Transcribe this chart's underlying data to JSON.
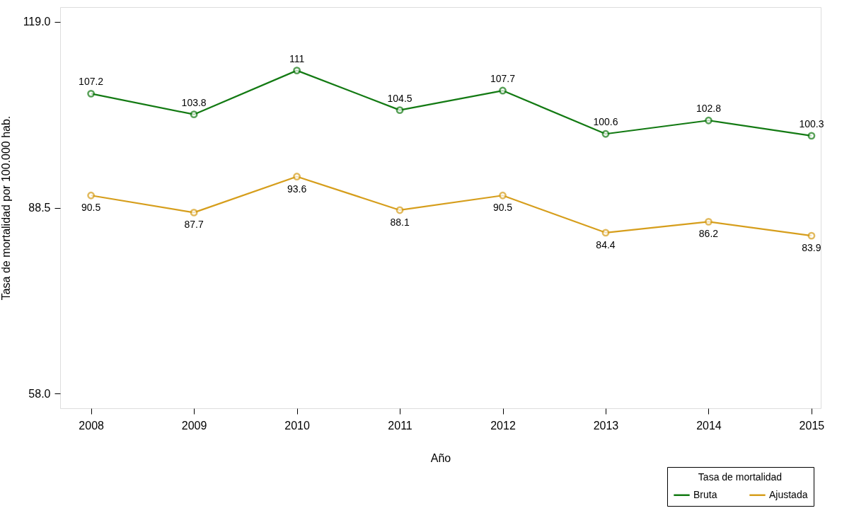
{
  "chart_data": {
    "type": "line",
    "xlabel": "Año",
    "ylabel": "Tasa de mortalidad por 100.000 hab.",
    "legend_title": "Tasa de mortalidad",
    "x": [
      2008,
      2009,
      2010,
      2011,
      2012,
      2013,
      2014,
      2015
    ],
    "series": [
      {
        "name": "Bruta",
        "color": "#137a13",
        "values": [
          107.2,
          103.8,
          111,
          104.5,
          107.7,
          100.6,
          102.8,
          100.3
        ]
      },
      {
        "name": "Ajustada",
        "color": "#d69e1c",
        "values": [
          90.5,
          87.7,
          93.6,
          88.1,
          90.5,
          84.4,
          86.2,
          83.9
        ]
      }
    ],
    "xlim": [
      2007.7,
      2015.09
    ],
    "xticks": [
      2008,
      2009,
      2010,
      2011,
      2012,
      2013,
      2014,
      2015
    ],
    "ylim": [
      55.6,
      121.4
    ],
    "yticks": [
      {
        "value": 58,
        "label": "58.0"
      },
      {
        "value": 88.5,
        "label": "88.5"
      },
      {
        "value": 119,
        "label": "119.0"
      }
    ],
    "grid": false,
    "legend": "bottom right",
    "marker": "circle",
    "line_style": "solid",
    "data_labels": true
  }
}
